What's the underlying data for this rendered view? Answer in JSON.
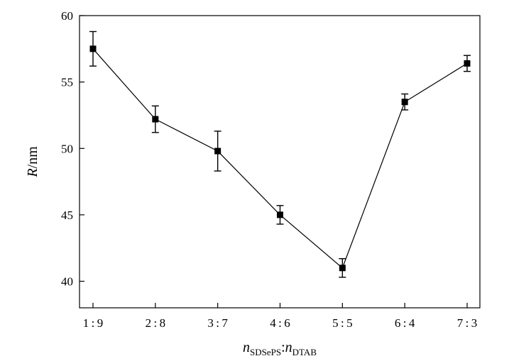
{
  "chart_data": {
    "type": "line",
    "categories": [
      "1 : 9",
      "2 : 8",
      "3 : 7",
      "4 : 6",
      "5 : 5",
      "6 : 4",
      "7 : 3"
    ],
    "series": [
      {
        "values": [
          57.5,
          52.2,
          49.8,
          45.0,
          41.0,
          53.5,
          56.4
        ],
        "errors": [
          1.3,
          1.0,
          1.5,
          0.7,
          0.7,
          0.6,
          0.6
        ],
        "color": "#000000",
        "marker": "square"
      }
    ],
    "ylim": [
      38,
      60
    ],
    "yticks": [
      40,
      45,
      50,
      55,
      60
    ],
    "ylabel": {
      "italic": "R",
      "rest": "/nm"
    },
    "xlabel": {
      "n1": "n",
      "sub1": "SDSePS",
      "sep": ":",
      "n2": "n",
      "sub2": "DTAB"
    },
    "grid": false,
    "legend": "none"
  }
}
